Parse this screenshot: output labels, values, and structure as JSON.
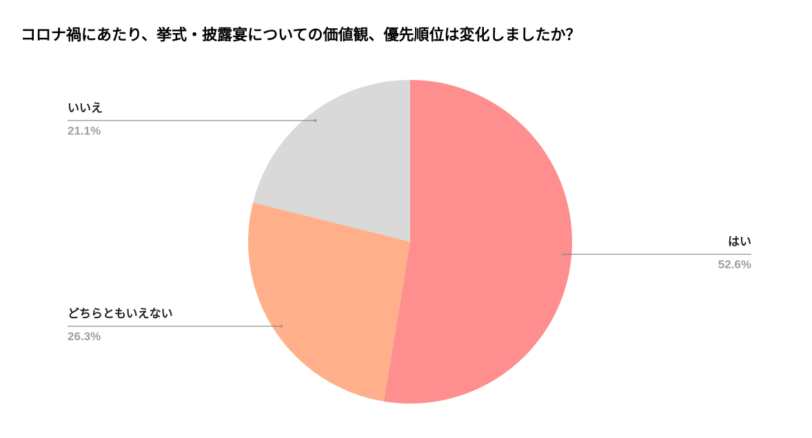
{
  "chart_data": {
    "type": "pie",
    "title": "コロナ禍にあたり、挙式・披露宴についての価値観、優先順位は変化しましたか？",
    "categories": [
      "はい",
      "どちらともいえない",
      "いいえ"
    ],
    "values": [
      52.6,
      26.3,
      21.1
    ],
    "value_labels": [
      "52.6%",
      "26.3%",
      "21.1%"
    ],
    "colors": [
      "#ff8f8f",
      "#ffb08a",
      "#d9d9d9"
    ]
  }
}
